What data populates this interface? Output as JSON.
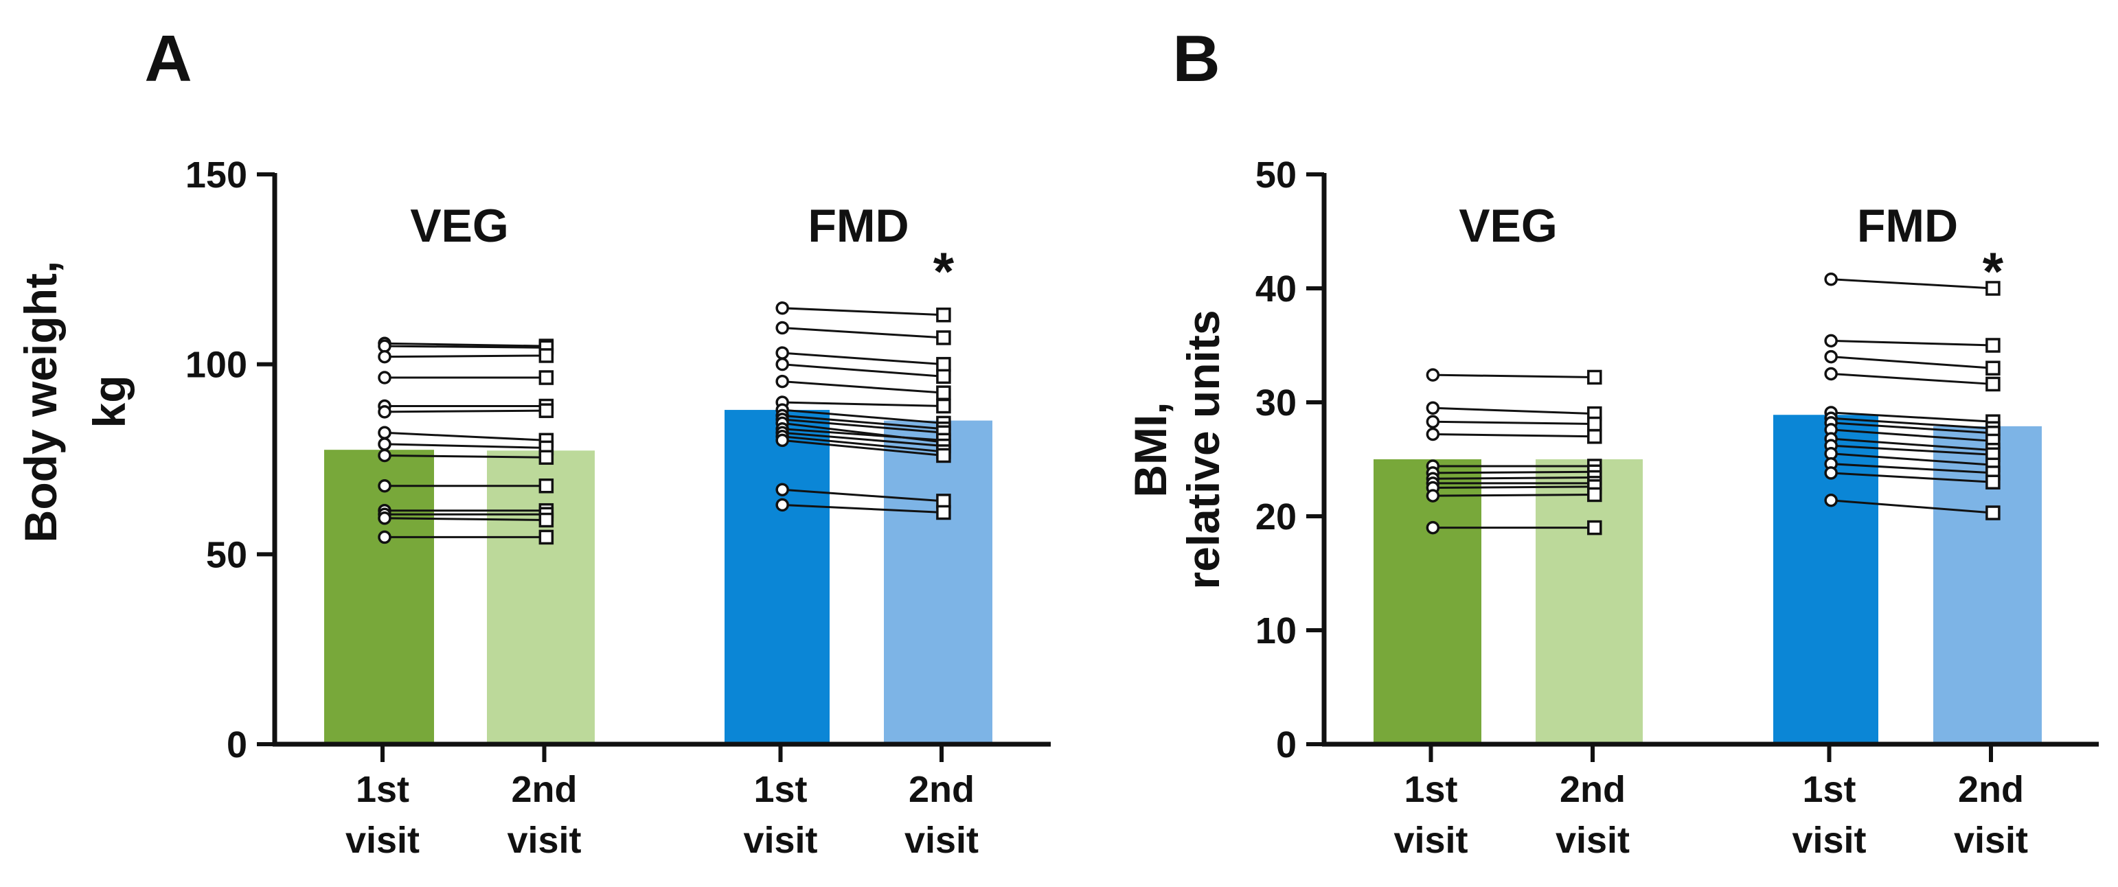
{
  "figure": {
    "background": "#ffffff"
  },
  "style": {
    "bar_colors": [
      "#78a83a",
      "#bcd99a",
      "#0b86d6",
      "#7db4e6"
    ],
    "axis_color": "#111111",
    "line_color": "#111111"
  },
  "chart_data": [
    {
      "type": "bar",
      "panel_label": "A",
      "title": "",
      "ylabel_lines": [
        "Body weight,",
        "kg"
      ],
      "xlabel": "",
      "ylim": [
        0,
        150
      ],
      "yticks": [
        0,
        50,
        100,
        150
      ],
      "ytick_labels": [
        "0",
        "50",
        "100",
        "150"
      ],
      "groups": [
        {
          "name": "VEG",
          "significance": "",
          "bars": [
            {
              "label_lines": [
                "1st",
                "visit"
              ],
              "value": 77.5
            },
            {
              "label_lines": [
                "2nd",
                "visit"
              ],
              "value": 77.3
            }
          ],
          "subjects": [
            [
              105.5,
              104.8
            ],
            [
              104.8,
              104.4
            ],
            [
              102.0,
              102.3
            ],
            [
              96.5,
              96.5
            ],
            [
              89.0,
              89.0
            ],
            [
              87.5,
              87.8
            ],
            [
              82.0,
              80.0
            ],
            [
              79.0,
              78.0
            ],
            [
              76.0,
              75.5
            ],
            [
              68.0,
              68.0
            ],
            [
              61.5,
              61.5
            ],
            [
              60.5,
              60.5
            ],
            [
              59.5,
              59.0
            ],
            [
              54.5,
              54.5
            ]
          ]
        },
        {
          "name": "FMD",
          "significance": "*",
          "bars": [
            {
              "label_lines": [
                "1st",
                "visit"
              ],
              "value": 88.0
            },
            {
              "label_lines": [
                "2nd",
                "visit"
              ],
              "value": 85.2
            }
          ],
          "subjects": [
            [
              114.8,
              113.0
            ],
            [
              109.6,
              107.0
            ],
            [
              103.0,
              100.0
            ],
            [
              100.0,
              96.8
            ],
            [
              95.5,
              92.5
            ],
            [
              90.0,
              89.0
            ],
            [
              88.0,
              84.5
            ],
            [
              86.5,
              83.0
            ],
            [
              85.5,
              82.0
            ],
            [
              84.5,
              79.5
            ],
            [
              83.0,
              80.0
            ],
            [
              82.0,
              78.5
            ],
            [
              81.0,
              77.0
            ],
            [
              80.0,
              76.0
            ],
            [
              67.0,
              64.0
            ],
            [
              63.0,
              61.0
            ]
          ]
        }
      ]
    },
    {
      "type": "bar",
      "panel_label": "B",
      "title": "",
      "ylabel_lines": [
        "BMI,",
        "relative units"
      ],
      "xlabel": "",
      "ylim": [
        0,
        50
      ],
      "yticks": [
        0,
        10,
        20,
        30,
        40,
        50
      ],
      "ytick_labels": [
        "0",
        "10",
        "20",
        "30",
        "40",
        "50"
      ],
      "groups": [
        {
          "name": "VEG",
          "significance": "",
          "bars": [
            {
              "label_lines": [
                "1st",
                "visit"
              ],
              "value": 25.0
            },
            {
              "label_lines": [
                "2nd",
                "visit"
              ],
              "value": 25.0
            }
          ],
          "subjects": [
            [
              32.4,
              32.2
            ],
            [
              29.5,
              29.0
            ],
            [
              28.3,
              28.1
            ],
            [
              27.2,
              27.0
            ],
            [
              24.4,
              24.4
            ],
            [
              23.8,
              23.9
            ],
            [
              23.3,
              23.4
            ],
            [
              22.9,
              22.9
            ],
            [
              22.5,
              22.6
            ],
            [
              21.8,
              21.9
            ],
            [
              19.0,
              19.0
            ]
          ]
        },
        {
          "name": "FMD",
          "significance": "*",
          "bars": [
            {
              "label_lines": [
                "1st",
                "visit"
              ],
              "value": 28.9
            },
            {
              "label_lines": [
                "2nd",
                "visit"
              ],
              "value": 27.9
            }
          ],
          "subjects": [
            [
              40.8,
              40.0
            ],
            [
              35.4,
              35.0
            ],
            [
              34.0,
              33.0
            ],
            [
              32.5,
              31.6
            ],
            [
              29.1,
              28.3
            ],
            [
              28.6,
              27.7
            ],
            [
              28.2,
              27.3
            ],
            [
              27.6,
              26.6
            ],
            [
              26.8,
              25.8
            ],
            [
              26.2,
              25.4
            ],
            [
              25.5,
              24.5
            ],
            [
              24.6,
              23.8
            ],
            [
              23.8,
              23.0
            ],
            [
              21.4,
              20.3
            ]
          ]
        }
      ]
    }
  ]
}
